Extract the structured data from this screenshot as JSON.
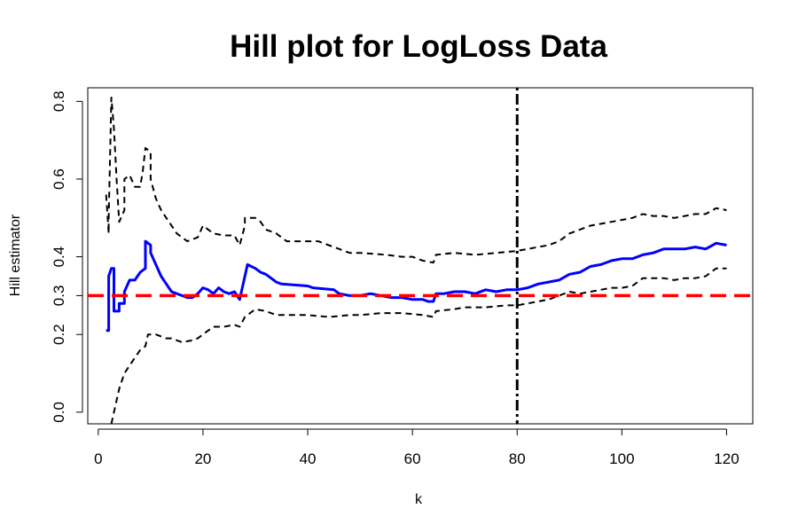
{
  "chart_data": {
    "type": "line",
    "title": "Hill plot for LogLoss Data",
    "xlabel": "k",
    "ylabel": "Hill estimator",
    "xlim": [
      -2,
      125
    ],
    "ylim": [
      -0.03,
      0.835
    ],
    "x_ticks": [
      0,
      20,
      40,
      60,
      80,
      100,
      120
    ],
    "y_ticks": [
      {
        "value": 0.0,
        "label": "0.0"
      },
      {
        "value": 0.2,
        "label": "0.2"
      },
      {
        "value": 0.3,
        "label": "0.3"
      },
      {
        "value": 0.4,
        "label": "0.4"
      },
      {
        "value": 0.6,
        "label": "0.6"
      },
      {
        "value": 0.8,
        "label": "0.8"
      }
    ],
    "grid": false,
    "series": [
      {
        "role": "hill-estimate",
        "color": "#0000ff",
        "style": "solid",
        "points": [
          [
            1.5,
            0.21
          ],
          [
            2,
            0.21
          ],
          [
            2,
            0.35
          ],
          [
            2.5,
            0.37
          ],
          [
            3,
            0.37
          ],
          [
            3,
            0.26
          ],
          [
            4,
            0.26
          ],
          [
            4,
            0.28
          ],
          [
            5,
            0.28
          ],
          [
            5,
            0.31
          ],
          [
            6,
            0.34
          ],
          [
            7,
            0.34
          ],
          [
            8,
            0.36
          ],
          [
            9,
            0.37
          ],
          [
            9,
            0.44
          ],
          [
            10,
            0.43
          ],
          [
            10,
            0.41
          ],
          [
            11,
            0.38
          ],
          [
            12,
            0.35
          ],
          [
            13,
            0.33
          ],
          [
            14,
            0.31
          ],
          [
            15,
            0.305
          ],
          [
            16,
            0.3
          ],
          [
            17,
            0.295
          ],
          [
            18,
            0.295
          ],
          [
            19,
            0.305
          ],
          [
            20,
            0.32
          ],
          [
            21,
            0.315
          ],
          [
            22,
            0.305
          ],
          [
            23,
            0.32
          ],
          [
            24,
            0.31
          ],
          [
            25,
            0.305
          ],
          [
            26,
            0.31
          ],
          [
            27,
            0.29
          ],
          [
            28,
            0.35
          ],
          [
            28.5,
            0.38
          ],
          [
            30,
            0.37
          ],
          [
            31,
            0.36
          ],
          [
            32,
            0.355
          ],
          [
            33,
            0.345
          ],
          [
            34,
            0.335
          ],
          [
            35,
            0.33
          ],
          [
            40,
            0.325
          ],
          [
            41,
            0.32
          ],
          [
            45,
            0.315
          ],
          [
            46,
            0.305
          ],
          [
            48,
            0.3
          ],
          [
            50,
            0.3
          ],
          [
            52,
            0.305
          ],
          [
            54,
            0.3
          ],
          [
            56,
            0.295
          ],
          [
            58,
            0.295
          ],
          [
            60,
            0.29
          ],
          [
            62,
            0.29
          ],
          [
            63,
            0.285
          ],
          [
            64,
            0.285
          ],
          [
            64.5,
            0.305
          ],
          [
            66,
            0.305
          ],
          [
            68,
            0.31
          ],
          [
            70,
            0.31
          ],
          [
            72,
            0.305
          ],
          [
            74,
            0.315
          ],
          [
            76,
            0.31
          ],
          [
            78,
            0.315
          ],
          [
            80,
            0.315
          ],
          [
            82,
            0.32
          ],
          [
            84,
            0.33
          ],
          [
            86,
            0.335
          ],
          [
            88,
            0.34
          ],
          [
            90,
            0.355
          ],
          [
            92,
            0.36
          ],
          [
            94,
            0.375
          ],
          [
            96,
            0.38
          ],
          [
            98,
            0.39
          ],
          [
            100,
            0.395
          ],
          [
            102,
            0.395
          ],
          [
            104,
            0.405
          ],
          [
            106,
            0.41
          ],
          [
            108,
            0.42
          ],
          [
            110,
            0.42
          ],
          [
            112,
            0.42
          ],
          [
            114,
            0.425
          ],
          [
            116,
            0.42
          ],
          [
            118,
            0.435
          ],
          [
            120,
            0.43
          ]
        ]
      },
      {
        "role": "upper-confidence-band",
        "color": "#000000",
        "style": "dashed",
        "points": [
          [
            1.5,
            0.56
          ],
          [
            2,
            0.46
          ],
          [
            2,
            0.5
          ],
          [
            2.5,
            0.81
          ],
          [
            3,
            0.73
          ],
          [
            3.5,
            0.6
          ],
          [
            4,
            0.49
          ],
          [
            5,
            0.52
          ],
          [
            5,
            0.6
          ],
          [
            6,
            0.61
          ],
          [
            7,
            0.58
          ],
          [
            8,
            0.58
          ],
          [
            8.5,
            0.62
          ],
          [
            9,
            0.68
          ],
          [
            10,
            0.67
          ],
          [
            10,
            0.6
          ],
          [
            11,
            0.55
          ],
          [
            12,
            0.52
          ],
          [
            13,
            0.5
          ],
          [
            14,
            0.48
          ],
          [
            15,
            0.46
          ],
          [
            16,
            0.45
          ],
          [
            17,
            0.44
          ],
          [
            18,
            0.445
          ],
          [
            19,
            0.45
          ],
          [
            20,
            0.48
          ],
          [
            21,
            0.47
          ],
          [
            22,
            0.46
          ],
          [
            24,
            0.455
          ],
          [
            26,
            0.455
          ],
          [
            27,
            0.43
          ],
          [
            28,
            0.48
          ],
          [
            28,
            0.5
          ],
          [
            30,
            0.5
          ],
          [
            31,
            0.49
          ],
          [
            32,
            0.47
          ],
          [
            34,
            0.46
          ],
          [
            36,
            0.44
          ],
          [
            40,
            0.44
          ],
          [
            42,
            0.44
          ],
          [
            44,
            0.43
          ],
          [
            46,
            0.42
          ],
          [
            48,
            0.41
          ],
          [
            50,
            0.41
          ],
          [
            55,
            0.405
          ],
          [
            58,
            0.4
          ],
          [
            60,
            0.4
          ],
          [
            62,
            0.39
          ],
          [
            64,
            0.385
          ],
          [
            64.5,
            0.405
          ],
          [
            68,
            0.41
          ],
          [
            72,
            0.405
          ],
          [
            76,
            0.41
          ],
          [
            80,
            0.415
          ],
          [
            82,
            0.42
          ],
          [
            84,
            0.425
          ],
          [
            86,
            0.43
          ],
          [
            88,
            0.44
          ],
          [
            90,
            0.46
          ],
          [
            92,
            0.47
          ],
          [
            94,
            0.48
          ],
          [
            96,
            0.485
          ],
          [
            98,
            0.49
          ],
          [
            100,
            0.495
          ],
          [
            102,
            0.5
          ],
          [
            104,
            0.51
          ],
          [
            106,
            0.505
          ],
          [
            108,
            0.505
          ],
          [
            110,
            0.5
          ],
          [
            112,
            0.505
          ],
          [
            114,
            0.51
          ],
          [
            116,
            0.51
          ],
          [
            118,
            0.525
          ],
          [
            120,
            0.52
          ]
        ]
      },
      {
        "role": "lower-confidence-band",
        "color": "#000000",
        "style": "dashed",
        "points": [
          [
            2.5,
            -0.03
          ],
          [
            3,
            0.0
          ],
          [
            4,
            0.06
          ],
          [
            5,
            0.1
          ],
          [
            6,
            0.12
          ],
          [
            7,
            0.14
          ],
          [
            8,
            0.16
          ],
          [
            9,
            0.17
          ],
          [
            9.5,
            0.2
          ],
          [
            11,
            0.2
          ],
          [
            12,
            0.195
          ],
          [
            13,
            0.19
          ],
          [
            14,
            0.19
          ],
          [
            16,
            0.18
          ],
          [
            18,
            0.185
          ],
          [
            19,
            0.19
          ],
          [
            20,
            0.2
          ],
          [
            21,
            0.21
          ],
          [
            22,
            0.22
          ],
          [
            24,
            0.22
          ],
          [
            26,
            0.225
          ],
          [
            27,
            0.22
          ],
          [
            28,
            0.245
          ],
          [
            29,
            0.255
          ],
          [
            30,
            0.265
          ],
          [
            32,
            0.26
          ],
          [
            34,
            0.25
          ],
          [
            36,
            0.25
          ],
          [
            40,
            0.25
          ],
          [
            44,
            0.245
          ],
          [
            48,
            0.25
          ],
          [
            50,
            0.25
          ],
          [
            54,
            0.255
          ],
          [
            58,
            0.255
          ],
          [
            62,
            0.25
          ],
          [
            64,
            0.245
          ],
          [
            64.5,
            0.26
          ],
          [
            68,
            0.265
          ],
          [
            70,
            0.27
          ],
          [
            74,
            0.27
          ],
          [
            78,
            0.275
          ],
          [
            80,
            0.275
          ],
          [
            82,
            0.28
          ],
          [
            84,
            0.285
          ],
          [
            86,
            0.29
          ],
          [
            88,
            0.3
          ],
          [
            90,
            0.31
          ],
          [
            92,
            0.305
          ],
          [
            94,
            0.31
          ],
          [
            96,
            0.315
          ],
          [
            98,
            0.32
          ],
          [
            100,
            0.32
          ],
          [
            102,
            0.325
          ],
          [
            104,
            0.345
          ],
          [
            106,
            0.345
          ],
          [
            108,
            0.345
          ],
          [
            110,
            0.34
          ],
          [
            112,
            0.345
          ],
          [
            114,
            0.345
          ],
          [
            116,
            0.35
          ],
          [
            118,
            0.37
          ],
          [
            120,
            0.37
          ]
        ]
      }
    ],
    "reference_lines": [
      {
        "role": "hline",
        "value": 0.3,
        "color": "#ff0000",
        "style": "dashed"
      },
      {
        "role": "vline",
        "value": 80,
        "color": "#000000",
        "style": "dotdash"
      }
    ]
  }
}
